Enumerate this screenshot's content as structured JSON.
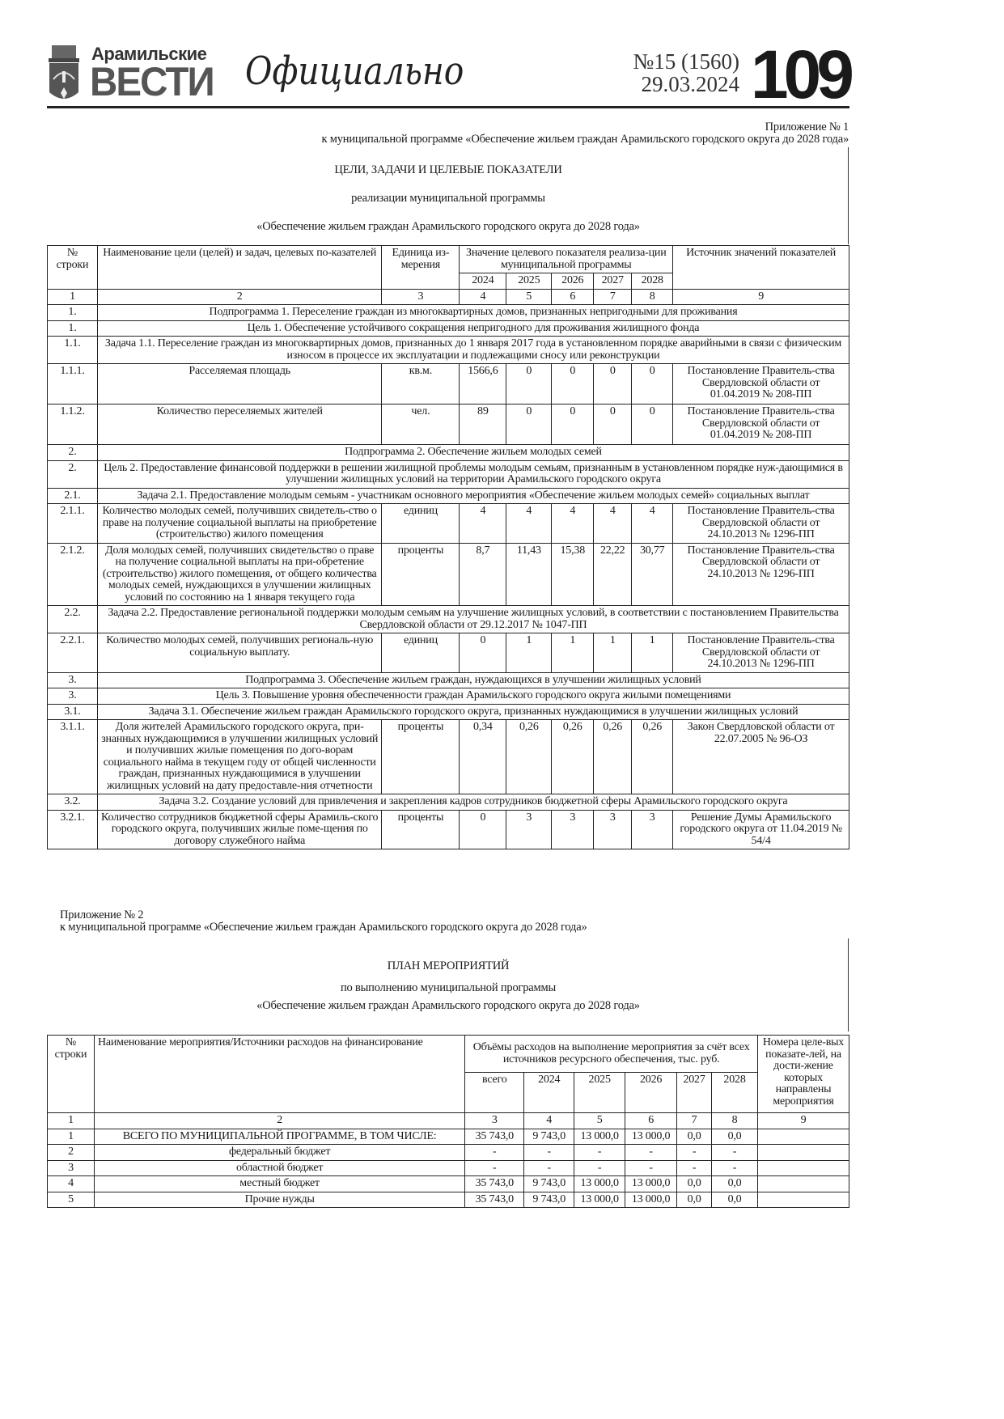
{
  "masthead": {
    "brand_top": "Арамильские",
    "brand_main": "ВЕСТИ",
    "section": "Официально",
    "issue": "№15 (1560)",
    "date": "29.03.2024",
    "page_number": "109"
  },
  "appendix1": {
    "label": "Приложение № 1",
    "ref": "к муниципальной программе «Обеспечение жильем граждан Арамильского городского округа до 2028 года»",
    "title": "ЦЕЛИ, ЗАДАЧИ И ЦЕЛЕВЫЕ ПОКАЗАТЕЛИ",
    "subtitle": "реализации муниципальной программы",
    "program": "«Обеспечение жильем граждан Арамильского городского округа до 2028 года»",
    "headers": {
      "num": "№ строки",
      "name": "Наименование цели (целей) и задач, целевых по-казателей",
      "unit": "Единица из-мерения",
      "values": "Значение целевого показателя реализа-ции муниципальной программы",
      "source": "Источник значений показателей",
      "years": [
        "2024",
        "2025",
        "2026",
        "2027",
        "2028"
      ],
      "col_numbers": [
        "1",
        "2",
        "3",
        "4",
        "5",
        "6",
        "7",
        "8",
        "9"
      ]
    },
    "rows": [
      {
        "num": "1.",
        "text": "Подпрограмма 1. Переселение граждан из многоквартирных домов, признанных непригодными для проживания"
      },
      {
        "num": "1.",
        "text": "Цель 1. Обеспечение устойчивого сокращения непригодного для проживания жилищного фонда"
      },
      {
        "num": "1.1.",
        "text": "Задача 1.1. Переселение граждан из многоквартирных домов, признанных до 1 января 2017 года в установленном порядке аварийными в связи с физическим износом в процессе их эксплуатации и подлежащими сносу или реконструкции"
      },
      {
        "num": "1.1.1.",
        "name": "Расселяемая площадь",
        "unit": "кв.м.",
        "values": [
          "1566,6",
          "0",
          "0",
          "0",
          "0"
        ],
        "source": "Постановление Правитель-ства Свердловской области от 01.04.2019 № 208-ПП"
      },
      {
        "num": "1.1.2.",
        "name": "Количество переселяемых жителей",
        "unit": "чел.",
        "values": [
          "89",
          "0",
          "0",
          "0",
          "0"
        ],
        "source": "Постановление Правитель-ства Свердловской области от 01.04.2019 № 208-ПП"
      },
      {
        "num": "2.",
        "text": "Подпрограмма 2. Обеспечение жильем молодых семей"
      },
      {
        "num": "2.",
        "text": "Цель 2. Предоставление финансовой поддержки в решении жилищной проблемы молодым семьям, признанным в установленном порядке нуж-дающимися в улучшении жилищных условий на территории Арамильского городского округа"
      },
      {
        "num": "2.1.",
        "text": "Задача 2.1. Предоставление молодым семьям - участникам основного мероприятия «Обеспечение жильем молодых семей» социальных выплат"
      },
      {
        "num": "2.1.1.",
        "name": "Количество молодых семей, получивших свидетель-ство о праве на получение социальной выплаты на приобретение (строительство) жилого помещения",
        "unit": "единиц",
        "values": [
          "4",
          "4",
          "4",
          "4",
          "4"
        ],
        "source": "Постановление Правитель-ства Свердловской области от 24.10.2013 № 1296-ПП"
      },
      {
        "num": "2.1.2.",
        "name": "Доля молодых семей, получивших свидетельство о праве на получение социальной выплаты на при-обретение (строительство) жилого помещения, от общего количества молодых семей, нуждающихся в улучшении жилищных условий по состоянию на 1 января текущего года",
        "unit": "проценты",
        "values": [
          "8,7",
          "11,43",
          "15,38",
          "22,22",
          "30,77"
        ],
        "source": "Постановление Правитель-ства Свердловской области от 24.10.2013 № 1296-ПП"
      },
      {
        "num": "2.2.",
        "text": "Задача 2.2. Предоставление региональной поддержки молодым семьям на улучшение жилищных условий, в соответствии с постановлением Правительства Свердловской области от 29.12.2017 № 1047-ПП"
      },
      {
        "num": "2.2.1.",
        "name": "Количество молодых семей, получивших региональ-ную социальную выплату.",
        "unit": "единиц",
        "values": [
          "0",
          "1",
          "1",
          "1",
          "1"
        ],
        "source": "Постановление Правитель-ства Свердловской области от 24.10.2013 № 1296-ПП"
      },
      {
        "num": "3.",
        "text": "Подпрограмма 3. Обеспечение жильем граждан, нуждающихся в улучшении жилищных условий"
      },
      {
        "num": "3.",
        "text": "Цель 3. Повышение уровня обеспеченности граждан Арамильского городского округа жилыми помещениями"
      },
      {
        "num": "3.1.",
        "text": "Задача 3.1. Обеспечение жильем граждан Арамильского городского округа, признанных нуждающимися в улучшении жилищных условий"
      },
      {
        "num": "3.1.1.",
        "name": "Доля жителей Арамильского городского округа, при-знанных нуждающимися в улучшении жилищных условий и получивших жилые помещения по дого-ворам социального найма в текущем году от общей численности граждан, признанных нуждающимися в улучшении жилищных условий на дату предоставле-ния отчетности",
        "unit": "проценты",
        "values": [
          "0,34",
          "0,26",
          "0,26",
          "0,26",
          "0,26"
        ],
        "source": "Закон Свердловской области от 22.07.2005 № 96-ОЗ"
      },
      {
        "num": "3.2.",
        "text": "Задача 3.2. Создание условий для привлечения и закрепления кадров сотрудников бюджетной сферы Арамильского городского округа"
      },
      {
        "num": "3.2.1.",
        "name": "Количество сотрудников бюджетной сферы Арамиль-ского городского округа, получивших жилые поме-щения по договору служебного найма",
        "unit": "проценты",
        "values": [
          "0",
          "3",
          "3",
          "3",
          "3"
        ],
        "source": "Решение Думы Арамильского городского округа от 11.04.2019 № 54/4"
      }
    ]
  },
  "appendix2": {
    "label": "Приложение № 2",
    "ref": "к муниципальной программе «Обеспечение жильем граждан Арамильского городского округа до 2028 года»",
    "title": "ПЛАН МЕРОПРИЯТИЙ",
    "subtitle": "по выполнению муниципальной программы",
    "program": "«Обеспечение жильем граждан Арамильского городского округа до 2028 года»",
    "headers": {
      "num": "№ строки",
      "name": "Наименование мероприятия/Источники расходов на финансирование",
      "volumes": "Объёмы расходов на выполнение мероприятия за счёт всех источников ресурсного обеспечения, тыс. руб.",
      "indicators": "Номера целе-вых показате-лей, на дости-жение которых направлены мероприятия",
      "cols": [
        "всего",
        "2024",
        "2025",
        "2026",
        "2027",
        "2028"
      ],
      "col_numbers": [
        "1",
        "2",
        "3",
        "4",
        "5",
        "6",
        "7",
        "8",
        "9"
      ]
    },
    "rows": [
      {
        "num": "1",
        "name": "ВСЕГО ПО МУНИЦИПАЛЬНОЙ ПРОГРАММЕ, В ТОМ ЧИСЛЕ:",
        "values": [
          "35 743,0",
          "9 743,0",
          "13 000,0",
          "13 000,0",
          "0,0",
          "0,0"
        ],
        "indicators": ""
      },
      {
        "num": "2",
        "name": "федеральный бюджет",
        "values": [
          "-",
          "-",
          "-",
          "-",
          "-",
          "-"
        ],
        "indicators": ""
      },
      {
        "num": "3",
        "name": "областной бюджет",
        "values": [
          "-",
          "-",
          "-",
          "-",
          "-",
          "-"
        ],
        "indicators": ""
      },
      {
        "num": "4",
        "name": "местный бюджет",
        "values": [
          "35 743,0",
          "9 743,0",
          "13 000,0",
          "13 000,0",
          "0,0",
          "0,0"
        ],
        "indicators": ""
      },
      {
        "num": "5",
        "name": "Прочие нужды",
        "values": [
          "35 743,0",
          "9 743,0",
          "13 000,0",
          "13 000,0",
          "0,0",
          "0,0"
        ],
        "indicators": ""
      }
    ]
  }
}
